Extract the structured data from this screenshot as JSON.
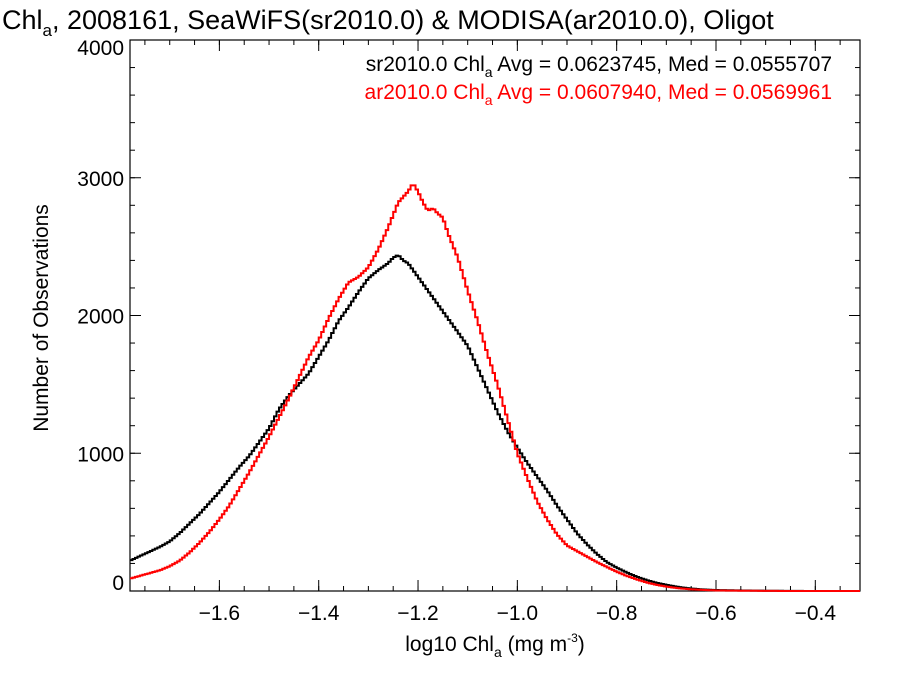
{
  "chart_data": {
    "type": "line",
    "step": true,
    "title": {
      "pre": "Chl",
      "sub": "a",
      "post": ", 2008161, SeaWiFS(sr2010.0) & MODISA(ar2010.0), Oligot"
    },
    "xlabel": {
      "pre": "log10 Chl",
      "sub": "a",
      "mid": " (mg m",
      "sup": "-3",
      "post": ")"
    },
    "ylabel": "Number of Observations",
    "xlim": [
      -1.78,
      -0.31
    ],
    "ylim": [
      0,
      4000
    ],
    "x_ticks": [
      -1.6,
      -1.4,
      -1.2,
      -1.0,
      -0.8,
      -0.6,
      -0.4
    ],
    "x_tick_labels": [
      "−1.6",
      "−1.4",
      "−1.2",
      "−1.0",
      "−0.8",
      "−0.6",
      "−0.4"
    ],
    "y_ticks": [
      0,
      1000,
      2000,
      3000,
      4000
    ],
    "y_tick_labels": [
      "0",
      "1000",
      "2000",
      "3000",
      "4000"
    ],
    "legend_position": "top-right",
    "series": [
      {
        "name": "sr2010.0",
        "color": "#000000",
        "stats": {
          "pre": "sr2010.0 Chl",
          "sub": "a",
          "post": " Avg = 0.0623745, Med = 0.0555707"
        },
        "points": [
          [
            -1.78,
            220
          ],
          [
            -1.75,
            270
          ],
          [
            -1.72,
            320
          ],
          [
            -1.7,
            360
          ],
          [
            -1.68,
            420
          ],
          [
            -1.66,
            490
          ],
          [
            -1.64,
            560
          ],
          [
            -1.62,
            640
          ],
          [
            -1.6,
            720
          ],
          [
            -1.58,
            810
          ],
          [
            -1.56,
            900
          ],
          [
            -1.54,
            980
          ],
          [
            -1.52,
            1080
          ],
          [
            -1.5,
            1180
          ],
          [
            -1.48,
            1320
          ],
          [
            -1.46,
            1420
          ],
          [
            -1.44,
            1500
          ],
          [
            -1.42,
            1580
          ],
          [
            -1.4,
            1700
          ],
          [
            -1.38,
            1820
          ],
          [
            -1.36,
            1960
          ],
          [
            -1.34,
            2060
          ],
          [
            -1.32,
            2170
          ],
          [
            -1.3,
            2270
          ],
          [
            -1.28,
            2330
          ],
          [
            -1.26,
            2380
          ],
          [
            -1.25,
            2420
          ],
          [
            -1.24,
            2440
          ],
          [
            -1.23,
            2400
          ],
          [
            -1.22,
            2380
          ],
          [
            -1.21,
            2330
          ],
          [
            -1.2,
            2280
          ],
          [
            -1.18,
            2180
          ],
          [
            -1.16,
            2080
          ],
          [
            -1.14,
            1980
          ],
          [
            -1.12,
            1880
          ],
          [
            -1.1,
            1780
          ],
          [
            -1.08,
            1620
          ],
          [
            -1.06,
            1460
          ],
          [
            -1.04,
            1300
          ],
          [
            -1.02,
            1160
          ],
          [
            -1.0,
            1040
          ],
          [
            -0.98,
            930
          ],
          [
            -0.96,
            830
          ],
          [
            -0.94,
            730
          ],
          [
            -0.92,
            620
          ],
          [
            -0.9,
            520
          ],
          [
            -0.88,
            420
          ],
          [
            -0.86,
            340
          ],
          [
            -0.84,
            270
          ],
          [
            -0.82,
            210
          ],
          [
            -0.8,
            170
          ],
          [
            -0.78,
            135
          ],
          [
            -0.76,
            105
          ],
          [
            -0.74,
            80
          ],
          [
            -0.72,
            60
          ],
          [
            -0.7,
            45
          ],
          [
            -0.68,
            32
          ],
          [
            -0.66,
            22
          ],
          [
            -0.64,
            15
          ],
          [
            -0.62,
            10
          ],
          [
            -0.6,
            7
          ],
          [
            -0.55,
            4
          ],
          [
            -0.5,
            2
          ],
          [
            -0.45,
            1
          ],
          [
            -0.4,
            0
          ],
          [
            -0.31,
            0
          ]
        ]
      },
      {
        "name": "ar2010.0",
        "color": "#ff0000",
        "stats": {
          "pre": "ar2010.0 Chl",
          "sub": "a",
          "post": " Avg = 0.0607940, Med = 0.0569961"
        },
        "points": [
          [
            -1.78,
            90
          ],
          [
            -1.75,
            120
          ],
          [
            -1.72,
            150
          ],
          [
            -1.7,
            180
          ],
          [
            -1.68,
            220
          ],
          [
            -1.66,
            280
          ],
          [
            -1.64,
            350
          ],
          [
            -1.62,
            430
          ],
          [
            -1.6,
            520
          ],
          [
            -1.58,
            620
          ],
          [
            -1.56,
            740
          ],
          [
            -1.54,
            860
          ],
          [
            -1.52,
            990
          ],
          [
            -1.5,
            1120
          ],
          [
            -1.48,
            1260
          ],
          [
            -1.46,
            1400
          ],
          [
            -1.44,
            1550
          ],
          [
            -1.42,
            1700
          ],
          [
            -1.4,
            1820
          ],
          [
            -1.38,
            1980
          ],
          [
            -1.36,
            2120
          ],
          [
            -1.34,
            2240
          ],
          [
            -1.32,
            2280
          ],
          [
            -1.3,
            2350
          ],
          [
            -1.28,
            2480
          ],
          [
            -1.26,
            2640
          ],
          [
            -1.24,
            2820
          ],
          [
            -1.22,
            2900
          ],
          [
            -1.21,
            2960
          ],
          [
            -1.2,
            2900
          ],
          [
            -1.19,
            2820
          ],
          [
            -1.18,
            2760
          ],
          [
            -1.17,
            2780
          ],
          [
            -1.16,
            2740
          ],
          [
            -1.15,
            2710
          ],
          [
            -1.14,
            2600
          ],
          [
            -1.12,
            2420
          ],
          [
            -1.1,
            2180
          ],
          [
            -1.08,
            1960
          ],
          [
            -1.06,
            1720
          ],
          [
            -1.04,
            1500
          ],
          [
            -1.02,
            1250
          ],
          [
            -1.0,
            1000
          ],
          [
            -0.98,
            820
          ],
          [
            -0.96,
            650
          ],
          [
            -0.94,
            520
          ],
          [
            -0.92,
            410
          ],
          [
            -0.9,
            330
          ],
          [
            -0.88,
            290
          ],
          [
            -0.86,
            250
          ],
          [
            -0.84,
            210
          ],
          [
            -0.82,
            175
          ],
          [
            -0.8,
            140
          ],
          [
            -0.78,
            110
          ],
          [
            -0.76,
            85
          ],
          [
            -0.74,
            62
          ],
          [
            -0.72,
            45
          ],
          [
            -0.7,
            32
          ],
          [
            -0.68,
            22
          ],
          [
            -0.66,
            15
          ],
          [
            -0.64,
            10
          ],
          [
            -0.62,
            7
          ],
          [
            -0.6,
            4
          ],
          [
            -0.55,
            2
          ],
          [
            -0.5,
            1
          ],
          [
            -0.45,
            0
          ],
          [
            -0.31,
            0
          ]
        ]
      }
    ]
  }
}
